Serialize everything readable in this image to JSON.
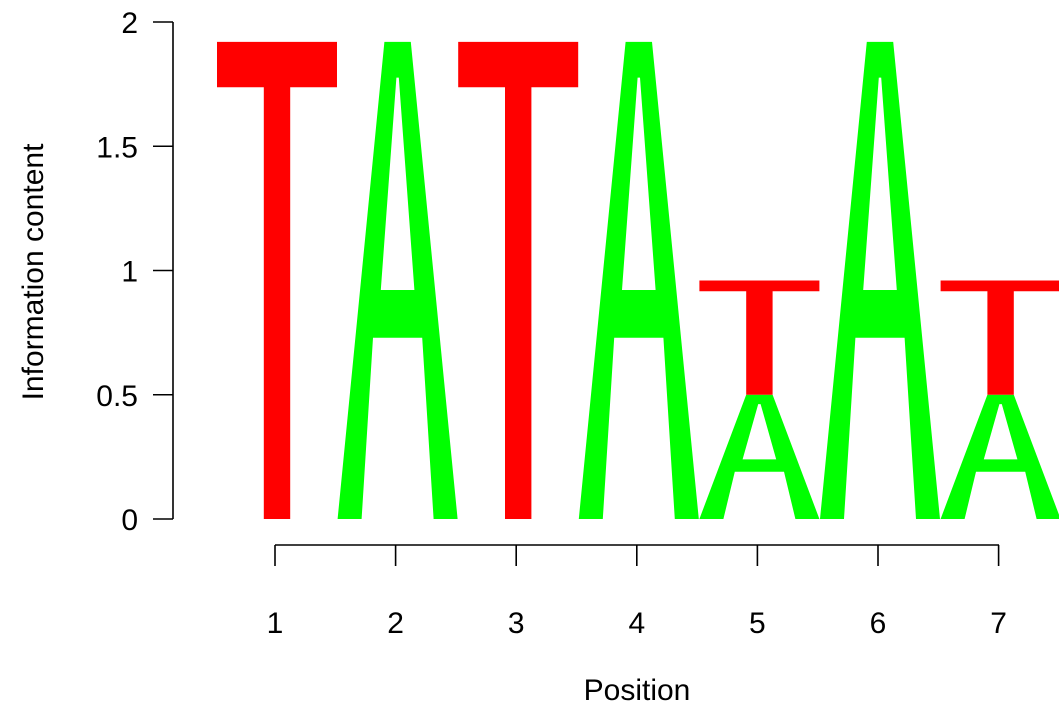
{
  "chart_data": {
    "type": "sequence-logo",
    "xlabel": "Position",
    "ylabel": "Information content",
    "ylim": [
      0,
      2
    ],
    "y_ticks": [
      {
        "value": 0,
        "label": "0"
      },
      {
        "value": 0.5,
        "label": "0.5"
      },
      {
        "value": 1,
        "label": "1"
      },
      {
        "value": 1.5,
        "label": "1.5"
      },
      {
        "value": 2,
        "label": "2"
      }
    ],
    "x_ticks": [
      {
        "value": 1,
        "label": "1"
      },
      {
        "value": 2,
        "label": "2"
      },
      {
        "value": 3,
        "label": "3"
      },
      {
        "value": 4,
        "label": "4"
      },
      {
        "value": 5,
        "label": "5"
      },
      {
        "value": 6,
        "label": "6"
      },
      {
        "value": 7,
        "label": "7"
      }
    ],
    "colors": {
      "A": "#00ff00",
      "T": "#ff0000"
    },
    "positions": [
      {
        "position": 1,
        "stack": [
          {
            "letter": "T",
            "height": 1.92
          }
        ]
      },
      {
        "position": 2,
        "stack": [
          {
            "letter": "A",
            "height": 1.92
          }
        ]
      },
      {
        "position": 3,
        "stack": [
          {
            "letter": "T",
            "height": 1.92
          }
        ]
      },
      {
        "position": 4,
        "stack": [
          {
            "letter": "A",
            "height": 1.92
          }
        ]
      },
      {
        "position": 5,
        "stack": [
          {
            "letter": "A",
            "height": 0.5
          },
          {
            "letter": "T",
            "height": 0.46
          }
        ]
      },
      {
        "position": 6,
        "stack": [
          {
            "letter": "A",
            "height": 1.92
          }
        ]
      },
      {
        "position": 7,
        "stack": [
          {
            "letter": "A",
            "height": 0.5
          },
          {
            "letter": "T",
            "height": 0.46
          }
        ]
      }
    ]
  }
}
